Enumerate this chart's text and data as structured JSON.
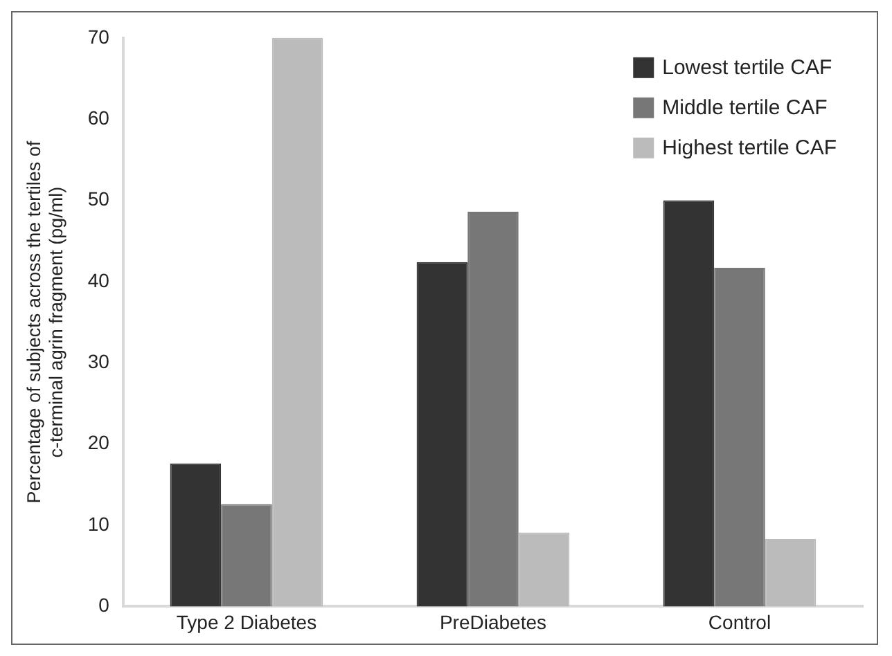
{
  "chart_data": {
    "type": "bar",
    "ylabel": "Percentage of subjects across the tertiles of c-terminal agrin fragment (pg/ml)",
    "categories": [
      "Type 2 Diabetes",
      "PreDiabetes",
      "Control"
    ],
    "series": [
      {
        "name": "Lowest tertile CAF",
        "color": "#333333",
        "values": [
          17.6,
          42.4,
          50.0
        ]
      },
      {
        "name": "Middle tertile CAF",
        "color": "#777777",
        "values": [
          12.6,
          48.6,
          41.7
        ]
      },
      {
        "name": "Highest tertile CAF",
        "color": "#bbbbbb",
        "values": [
          70.0,
          9.1,
          8.3
        ]
      }
    ],
    "ylim": [
      0,
      70
    ],
    "yticks": [
      0,
      10,
      20,
      30,
      40,
      50,
      60,
      70
    ],
    "grid": false,
    "legend": "top right"
  }
}
